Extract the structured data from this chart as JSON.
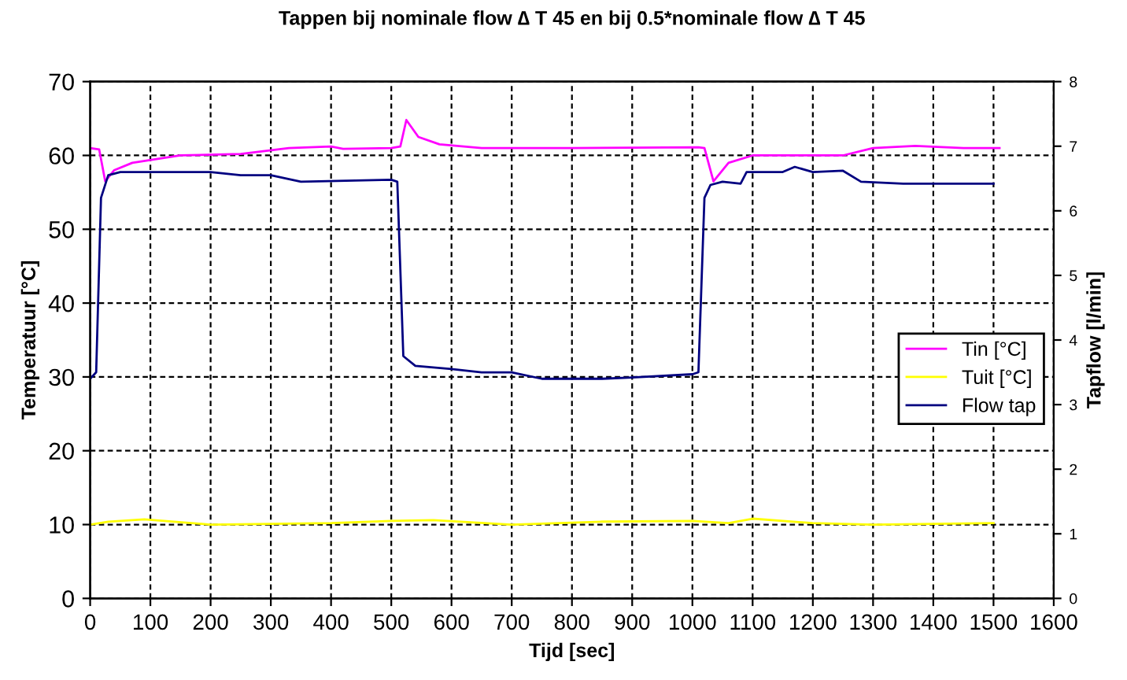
{
  "chart_data": {
    "type": "line",
    "title": "Tappen bij nominale flow ∆ T 45 en bij 0.5*nominale flow ∆ T 45",
    "xlabel": "Tijd [sec]",
    "ylabel": "Temperatuur [°C]",
    "y2label": "Tapflow [l/min]",
    "xlim": [
      0,
      1600
    ],
    "xticks": [
      0,
      100,
      200,
      300,
      400,
      500,
      600,
      700,
      800,
      900,
      1000,
      1100,
      1200,
      1300,
      1400,
      1500,
      1600
    ],
    "ylim": [
      0,
      70
    ],
    "yticks": [
      0,
      10,
      20,
      30,
      40,
      50,
      60,
      70
    ],
    "y2lim": [
      0,
      8
    ],
    "y2ticks": [
      0,
      1,
      2,
      3,
      4,
      5,
      6,
      7,
      8
    ],
    "grid": true,
    "legend": "right",
    "line_style": "solid",
    "series": [
      {
        "name": "Tin [°C]",
        "color": "#ff00ff",
        "x": [
          0,
          15,
          25,
          40,
          70,
          150,
          250,
          330,
          400,
          420,
          500,
          515,
          525,
          545,
          580,
          650,
          800,
          1010,
          1020,
          1035,
          1060,
          1100,
          1250,
          1300,
          1370,
          1450,
          1510
        ],
        "values": [
          61,
          60.8,
          56.5,
          58,
          59,
          60,
          60.2,
          61,
          61.2,
          60.9,
          61,
          61.2,
          64.8,
          62.5,
          61.5,
          61,
          61,
          61.1,
          61,
          56.5,
          59,
          60,
          60,
          61,
          61.3,
          61,
          61
        ]
      },
      {
        "name": "Tuit [°C]",
        "color": "#ffff00",
        "x": [
          0,
          30,
          90,
          200,
          400,
          500,
          570,
          700,
          850,
          1000,
          1060,
          1100,
          1200,
          1300,
          1500
        ],
        "values": [
          10,
          10.4,
          10.7,
          10,
          10.2,
          10.5,
          10.6,
          10,
          10.4,
          10.5,
          10.2,
          10.8,
          10.2,
          10,
          10.2
        ]
      },
      {
        "name": "Flow tap",
        "color": "#000080",
        "axis": "y2",
        "x": [
          0,
          10,
          18,
          30,
          50,
          100,
          200,
          250,
          300,
          350,
          500,
          510,
          520,
          540,
          600,
          650,
          700,
          750,
          850,
          900,
          1000,
          1010,
          1020,
          1030,
          1050,
          1080,
          1090,
          1150,
          1170,
          1200,
          1250,
          1280,
          1350,
          1500
        ],
        "values": [
          3.4,
          3.5,
          6.2,
          6.55,
          6.6,
          6.6,
          6.6,
          6.55,
          6.55,
          6.45,
          6.48,
          6.45,
          3.75,
          3.6,
          3.55,
          3.5,
          3.5,
          3.4,
          3.4,
          3.42,
          3.47,
          3.5,
          6.2,
          6.4,
          6.45,
          6.42,
          6.6,
          6.6,
          6.68,
          6.6,
          6.62,
          6.45,
          6.42,
          6.42
        ]
      }
    ]
  }
}
